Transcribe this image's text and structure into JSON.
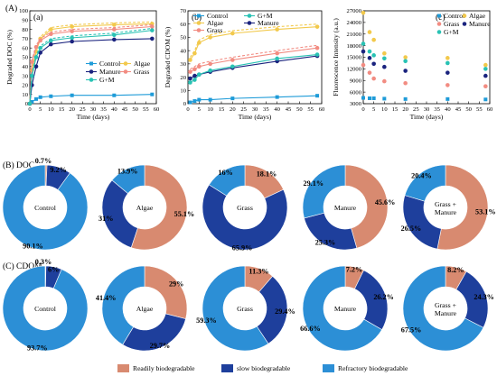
{
  "figure": {
    "section_a": "(A)",
    "section_b": "(B) DOC",
    "section_c": "(C) CDOM"
  },
  "colors": {
    "control": "#1e9bd8",
    "algae": "#f2c94c",
    "manure": "#1a237e",
    "grass": "#f28c82",
    "gm": "#29c2b4",
    "readily": "#d88a70",
    "slow": "#1e3f9c",
    "refractory": "#2c8fd6"
  },
  "chart_data": [
    {
      "type": "line",
      "panel": "(a)",
      "xlabel": "Time (days)",
      "ylabel": "Degraded DOC (%)",
      "xlim": [
        0,
        60
      ],
      "ylim": [
        0,
        100
      ],
      "xticks": [
        "0",
        "5",
        "10",
        "15",
        "20",
        "25",
        "30",
        "35",
        "40",
        "45",
        "50",
        "55",
        "60"
      ],
      "yticks": [
        "0",
        "10",
        "20",
        "30",
        "40",
        "50",
        "60",
        "70",
        "80",
        "90",
        "100"
      ],
      "legend": [
        "Control",
        "Algae",
        "Manure",
        "Grass",
        "G+M"
      ],
      "series": [
        {
          "name": "Control",
          "x": [
            0,
            1,
            3,
            5,
            10,
            20,
            40,
            58
          ],
          "y": [
            0,
            2,
            5,
            7,
            8,
            9,
            9,
            10
          ]
        },
        {
          "name": "Algae",
          "x": [
            0,
            1,
            3,
            5,
            10,
            20,
            40,
            58
          ],
          "y": [
            0,
            36,
            56,
            70,
            80,
            83,
            85,
            86
          ]
        },
        {
          "name": "Manure",
          "x": [
            0,
            1,
            3,
            5,
            10,
            20,
            40,
            58
          ],
          "y": [
            0,
            20,
            40,
            55,
            64,
            67,
            69,
            70
          ]
        },
        {
          "name": "Grass",
          "x": [
            0,
            1,
            3,
            5,
            10,
            20,
            40,
            58
          ],
          "y": [
            0,
            45,
            61,
            68,
            75,
            78,
            80,
            83
          ]
        },
        {
          "name": "G+M",
          "x": [
            0,
            1,
            3,
            5,
            10,
            20,
            40,
            58
          ],
          "y": [
            0,
            30,
            50,
            60,
            68,
            71,
            74,
            79
          ]
        }
      ]
    },
    {
      "type": "line",
      "panel": "(b)",
      "xlabel": "Time (days)",
      "ylabel": "Degraded CDOM (%)",
      "xlim": [
        0,
        60
      ],
      "ylim": [
        0,
        70
      ],
      "xticks": [
        "0",
        "5",
        "10",
        "15",
        "20",
        "25",
        "30",
        "35",
        "40",
        "45",
        "50",
        "55",
        "60"
      ],
      "yticks": [
        "0",
        "10",
        "20",
        "30",
        "40",
        "50",
        "60",
        "70"
      ],
      "legend": [
        "Control",
        "G+M",
        "Algae",
        "Manure",
        "Grass"
      ],
      "series": [
        {
          "name": "Control",
          "x": [
            1,
            3,
            5,
            10,
            20,
            40,
            58
          ],
          "y": [
            1,
            2,
            3,
            3,
            4,
            5,
            6
          ]
        },
        {
          "name": "Algae",
          "x": [
            1,
            3,
            5,
            10,
            20,
            40,
            58
          ],
          "y": [
            33,
            38,
            46,
            50,
            53,
            56,
            58
          ]
        },
        {
          "name": "Manure",
          "x": [
            1,
            3,
            5,
            10,
            20,
            40,
            58
          ],
          "y": [
            19,
            21,
            22,
            24,
            27,
            32,
            36
          ]
        },
        {
          "name": "Grass",
          "x": [
            1,
            3,
            5,
            10,
            20,
            40,
            58
          ],
          "y": [
            24,
            26,
            28,
            30,
            33,
            38,
            42
          ]
        },
        {
          "name": "G+M",
          "x": [
            1,
            3,
            5,
            10,
            20,
            40,
            58
          ],
          "y": [
            16,
            18,
            22,
            25,
            28,
            34,
            37
          ]
        }
      ]
    },
    {
      "type": "scatter",
      "panel": "(c)",
      "xlabel": "Time (days)",
      "ylabel": "Fluorescence Intensity (a.u.)",
      "xlim": [
        0,
        60
      ],
      "ylim": [
        3000,
        27000
      ],
      "xticks": [
        "0",
        "5",
        "10",
        "15",
        "20",
        "25",
        "30",
        "35",
        "40",
        "45",
        "50",
        "55",
        "60"
      ],
      "yticks": [
        "3000",
        "6000",
        "9000",
        "12000",
        "15000",
        "18000",
        "21000",
        "24000",
        "27000"
      ],
      "legend": [
        "Control",
        "Algae",
        "Grass",
        "Manure",
        "G+M"
      ],
      "series": [
        {
          "name": "Control",
          "x": [
            0,
            3,
            5,
            10,
            20,
            40,
            58
          ],
          "y": [
            4500,
            4400,
            4400,
            4300,
            4200,
            4200,
            4100
          ]
        },
        {
          "name": "Algae",
          "x": [
            0,
            3,
            5,
            10,
            20,
            40,
            58
          ],
          "y": [
            26500,
            21500,
            19500,
            16000,
            15000,
            14800,
            13000
          ]
        },
        {
          "name": "Grass",
          "x": [
            0,
            3,
            5,
            10,
            20,
            40,
            58
          ],
          "y": [
            13000,
            11000,
            9500,
            8800,
            8300,
            7800,
            7500
          ]
        },
        {
          "name": "Manure",
          "x": [
            0,
            3,
            5,
            10,
            20,
            40,
            58
          ],
          "y": [
            16500,
            14800,
            13300,
            12500,
            11500,
            11000,
            10200
          ]
        },
        {
          "name": "G+M",
          "x": [
            0,
            3,
            5,
            10,
            20,
            40,
            58
          ],
          "y": [
            18500,
            16500,
            15500,
            14700,
            14000,
            13500,
            12000
          ]
        }
      ]
    },
    {
      "type": "pie",
      "group": "DOC",
      "donuts": [
        {
          "name": "Control",
          "values": [
            0.7,
            9.2,
            90.1
          ],
          "labels": [
            "0.7%",
            "9.2%",
            "90.1%"
          ]
        },
        {
          "name": "Algae",
          "values": [
            55.1,
            31.0,
            13.9
          ],
          "labels": [
            "55.1%",
            "31%",
            "13.9%"
          ]
        },
        {
          "name": "Grass",
          "values": [
            18.1,
            65.9,
            16.0
          ],
          "labels": [
            "18.1%",
            "65.9%",
            "16%"
          ]
        },
        {
          "name": "Manure",
          "values": [
            45.6,
            25.3,
            29.1
          ],
          "labels": [
            "45.6%",
            "25.3%",
            "29.1%"
          ]
        },
        {
          "name": "Grass + Manure",
          "values": [
            53.1,
            26.5,
            20.4
          ],
          "labels": [
            "53.1%",
            "26.5%",
            "20.4%"
          ]
        }
      ]
    },
    {
      "type": "pie",
      "group": "CDOM",
      "donuts": [
        {
          "name": "Control",
          "values": [
            0.3,
            6.0,
            93.7
          ],
          "labels": [
            "0.3%",
            "6%",
            "93.7%"
          ]
        },
        {
          "name": "Algae",
          "values": [
            29.0,
            29.7,
            41.4
          ],
          "labels": [
            "29%",
            "29.7%",
            "41.4%"
          ]
        },
        {
          "name": "Grass",
          "values": [
            11.3,
            29.4,
            59.3
          ],
          "labels": [
            "11.3%",
            "29.4%",
            "59.3%"
          ]
        },
        {
          "name": "Manure",
          "values": [
            7.2,
            26.2,
            66.6
          ],
          "labels": [
            "7.2%",
            "26.2%",
            "66.6%"
          ]
        },
        {
          "name": "Grass + Manure",
          "values": [
            8.2,
            24.3,
            67.5
          ],
          "labels": [
            "8.2%",
            "24.3%",
            "67.5%"
          ]
        }
      ]
    }
  ],
  "legend_bottom": [
    "Readily biodegradable",
    "slow biodegradable",
    "Refractory biodegradable"
  ]
}
